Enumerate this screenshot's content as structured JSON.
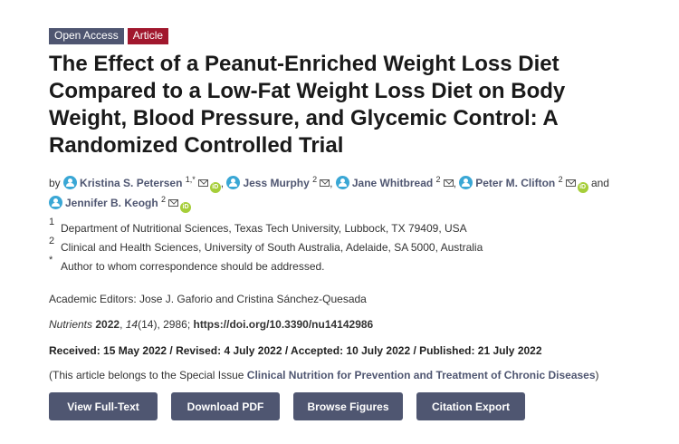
{
  "badges": {
    "open_access": "Open Access",
    "article": "Article"
  },
  "title": "The Effect of a Peanut-Enriched Weight Loss Diet Compared to a Low-Fat Weight Loss Diet on Body Weight, Blood Pressure, and Glycemic Control: A Randomized Controlled Trial",
  "authors": {
    "by": "by",
    "and": "and",
    "list": [
      {
        "name": "Kristina S. Petersen",
        "sup": "1,*",
        "orcid": true
      },
      {
        "name": "Jess Murphy",
        "sup": "2",
        "orcid": false
      },
      {
        "name": "Jane Whitbread",
        "sup": "2",
        "orcid": false
      },
      {
        "name": "Peter M. Clifton",
        "sup": "2",
        "orcid": true
      },
      {
        "name": "Jennifer B. Keogh",
        "sup": "2",
        "orcid": true
      }
    ]
  },
  "affiliations": [
    {
      "num": "1",
      "text": "Department of Nutritional Sciences, Texas Tech University, Lubbock, TX 79409, USA"
    },
    {
      "num": "2",
      "text": "Clinical and Health Sciences, University of South Australia, Adelaide, SA 5000, Australia"
    },
    {
      "num": "*",
      "text": "Author to whom correspondence should be addressed."
    }
  ],
  "editors": "Academic Editors: Jose J. Gaforio and Cristina Sánchez-Quesada",
  "citation": {
    "journal": "Nutrients",
    "year": "2022",
    "volume": "14",
    "issue_pages": "(14), 2986; ",
    "doi": "https://doi.org/10.3390/nu14142986"
  },
  "dates": "Received: 15 May 2022 / Revised: 4 July 2022 / Accepted: 10 July 2022 / Published: 21 July 2022",
  "special_issue": {
    "prefix": "(This article belongs to the Special Issue ",
    "link": "Clinical Nutrition for Prevention and Treatment of Chronic Diseases",
    "suffix": ")"
  },
  "buttons": {
    "view": "View Full-Text",
    "download": "Download PDF",
    "figures": "Browse Figures",
    "export": "Citation Export"
  },
  "icons": {
    "author": "person-circle-icon",
    "email": "envelope-icon",
    "orcid": "orcid-icon"
  },
  "colors": {
    "accent": "#4f5671",
    "article_badge": "#a1172d",
    "author_icon": "#3aa7d5",
    "orcid": "#a6ce39"
  }
}
